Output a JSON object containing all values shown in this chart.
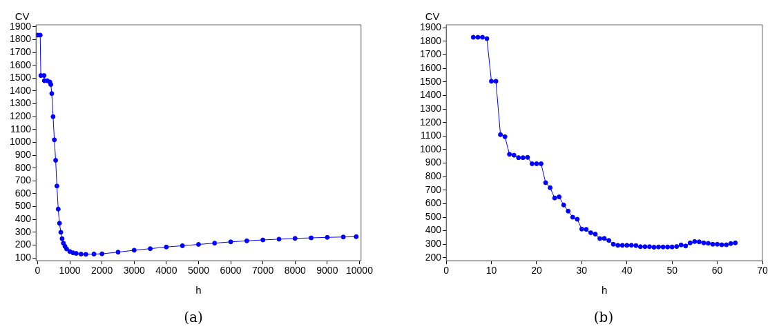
{
  "chart_data": [
    {
      "type": "line",
      "xlabel": "h",
      "ylabel": "CV",
      "annotations": [
        "(a)"
      ],
      "marker": "circle",
      "grid": false,
      "legend": false,
      "xlim": [
        -50,
        10050
      ],
      "xticks": [
        0,
        1000,
        2000,
        3000,
        4000,
        5000,
        6000,
        7000,
        8000,
        9000,
        10000
      ],
      "ylim": [
        78,
        1915
      ],
      "yticks": [
        100,
        200,
        300,
        400,
        500,
        600,
        700,
        800,
        900,
        1000,
        1100,
        1200,
        1300,
        1400,
        1500,
        1600,
        1700,
        1800,
        1900
      ],
      "series": [
        {
          "color": "#0000ff",
          "x": [
            0,
            80,
            100,
            200,
            210,
            300,
            380,
            410,
            440,
            480,
            520,
            560,
            600,
            640,
            680,
            720,
            760,
            800,
            850,
            900,
            1000,
            1100,
            1200,
            1350,
            1500,
            1750,
            2000,
            2500,
            3000,
            3500,
            4000,
            4500,
            5000,
            5500,
            6000,
            6500,
            7000,
            7500,
            8000,
            8500,
            9000,
            9500,
            9900
          ],
          "values": [
            1835,
            1835,
            1520,
            1520,
            1480,
            1480,
            1470,
            1450,
            1380,
            1200,
            1020,
            860,
            660,
            480,
            370,
            300,
            250,
            215,
            190,
            170,
            150,
            140,
            135,
            130,
            128,
            130,
            132,
            145,
            160,
            172,
            185,
            195,
            205,
            215,
            225,
            233,
            240,
            246,
            252,
            256,
            260,
            263,
            265
          ]
        }
      ]
    },
    {
      "type": "line",
      "xlabel": "h",
      "ylabel": "CV",
      "annotations": [
        "(b)"
      ],
      "marker": "circle",
      "grid": false,
      "legend": false,
      "xlim": [
        0,
        70
      ],
      "xticks": [
        0,
        10,
        20,
        30,
        40,
        50,
        60,
        70
      ],
      "ylim": [
        178,
        1922
      ],
      "yticks": [
        200,
        300,
        400,
        500,
        600,
        700,
        800,
        900,
        1000,
        1100,
        1200,
        1300,
        1400,
        1500,
        1600,
        1700,
        1800,
        1900
      ],
      "series": [
        {
          "color": "#0000ff",
          "x": [
            6,
            7,
            8,
            9,
            10,
            11,
            12,
            13,
            14,
            15,
            16,
            17,
            18,
            19,
            20,
            21,
            22,
            23,
            24,
            25,
            26,
            27,
            28,
            29,
            30,
            31,
            32,
            33,
            34,
            35,
            36,
            37,
            38,
            39,
            40,
            41,
            42,
            43,
            44,
            45,
            46,
            47,
            48,
            49,
            50,
            51,
            52,
            53,
            54,
            55,
            56,
            57,
            58,
            59,
            60,
            61,
            62,
            63,
            64
          ],
          "values": [
            1830,
            1830,
            1830,
            1820,
            1505,
            1505,
            1110,
            1095,
            965,
            958,
            940,
            940,
            942,
            895,
            895,
            895,
            755,
            718,
            642,
            650,
            590,
            545,
            500,
            485,
            412,
            410,
            385,
            375,
            342,
            343,
            328,
            300,
            292,
            292,
            292,
            293,
            290,
            282,
            282,
            282,
            278,
            280,
            280,
            280,
            280,
            283,
            295,
            287,
            310,
            320,
            318,
            310,
            307,
            300,
            300,
            296,
            296,
            305,
            310
          ]
        }
      ]
    }
  ]
}
